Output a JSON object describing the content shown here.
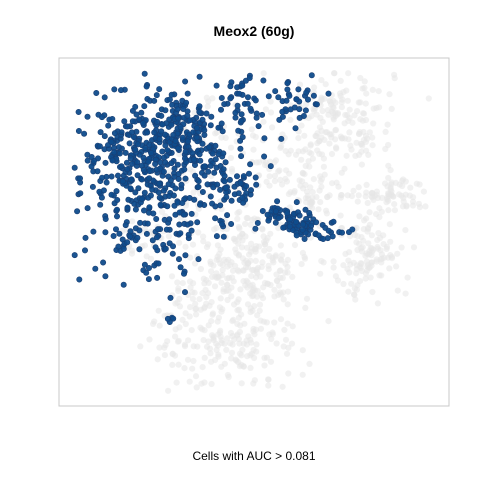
{
  "chart_data": {
    "type": "scatter",
    "title": "Meox2 (60g)",
    "xlabel": "Cells with AUC > 0.081",
    "ylabel": "",
    "xlim": [
      0,
      100
    ],
    "ylim": [
      0,
      100
    ],
    "grid": false,
    "axes_ticks": false,
    "colors": {
      "background_cells": "#e6e6e6",
      "high_auc_cells": "#0f4c8c",
      "high_auc_border": "#1a3f73",
      "frame": "#c8c8c8"
    },
    "series": [
      {
        "clusters": [
          {
            "cx": 22,
            "cy": 65,
            "sx": 9,
            "sy": 13,
            "n": 260
          },
          {
            "cx": 16,
            "cy": 75,
            "sx": 7,
            "sy": 6,
            "n": 110
          },
          {
            "cx": 33,
            "cy": 76,
            "sx": 8,
            "sy": 7,
            "n": 160
          },
          {
            "cx": 28,
            "cy": 86,
            "sx": 5,
            "sy": 4,
            "n": 50
          },
          {
            "cx": 46,
            "cy": 90,
            "sx": 4,
            "sy": 5,
            "n": 35
          },
          {
            "cx": 61,
            "cy": 91,
            "sx": 4,
            "sy": 4,
            "n": 35
          },
          {
            "cx": 44,
            "cy": 64,
            "sx": 4,
            "sy": 4,
            "n": 45
          },
          {
            "cx": 60,
            "cy": 54,
            "sx": 3,
            "sy": 3,
            "n": 40
          },
          {
            "cx": 64,
            "cy": 51,
            "sx": 3,
            "sy": 2,
            "n": 35
          },
          {
            "cx": 55,
            "cy": 56,
            "sx": 2,
            "sy": 2,
            "n": 15
          },
          {
            "cx": 73,
            "cy": 50,
            "sx": 2,
            "sy": 2,
            "n": 10
          },
          {
            "cx": 23,
            "cy": 38,
            "sx": 2,
            "sy": 2,
            "n": 8
          },
          {
            "cx": 28,
            "cy": 42,
            "sx": 2,
            "sy": 2,
            "n": 6
          },
          {
            "cx": 31,
            "cy": 48,
            "sx": 2,
            "sy": 2,
            "n": 6
          },
          {
            "cx": 16,
            "cy": 48,
            "sx": 3,
            "sy": 3,
            "n": 12
          },
          {
            "cx": 42,
            "cy": 51,
            "sx": 2,
            "sy": 2,
            "n": 6
          },
          {
            "cx": 27,
            "cy": 23,
            "sx": 1,
            "sy": 1,
            "n": 4
          },
          {
            "cx": 31,
            "cy": 71,
            "sx": 1,
            "sy": 1,
            "n": 3
          }
        ],
        "name": ""
      },
      {
        "clusters": [
          {
            "cx": 72,
            "cy": 85,
            "sx": 8,
            "sy": 8,
            "n": 180
          },
          {
            "cx": 88,
            "cy": 61,
            "sx": 5,
            "sy": 3,
            "n": 70
          },
          {
            "cx": 81,
            "cy": 43,
            "sx": 5,
            "sy": 7,
            "n": 120
          },
          {
            "cx": 48,
            "cy": 42,
            "sx": 9,
            "sy": 9,
            "n": 220
          },
          {
            "cx": 42,
            "cy": 20,
            "sx": 10,
            "sy": 9,
            "n": 230
          },
          {
            "cx": 66,
            "cy": 60,
            "sx": 5,
            "sy": 5,
            "n": 60
          },
          {
            "cx": 30,
            "cy": 64,
            "sx": 6,
            "sy": 8,
            "n": 50
          },
          {
            "cx": 55,
            "cy": 70,
            "sx": 6,
            "sy": 5,
            "n": 50
          },
          {
            "cx": 33,
            "cy": 82,
            "sx": 6,
            "sy": 4,
            "n": 40
          },
          {
            "cx": 20,
            "cy": 47,
            "sx": 5,
            "sy": 3,
            "n": 30
          }
        ],
        "name": ""
      }
    ]
  }
}
